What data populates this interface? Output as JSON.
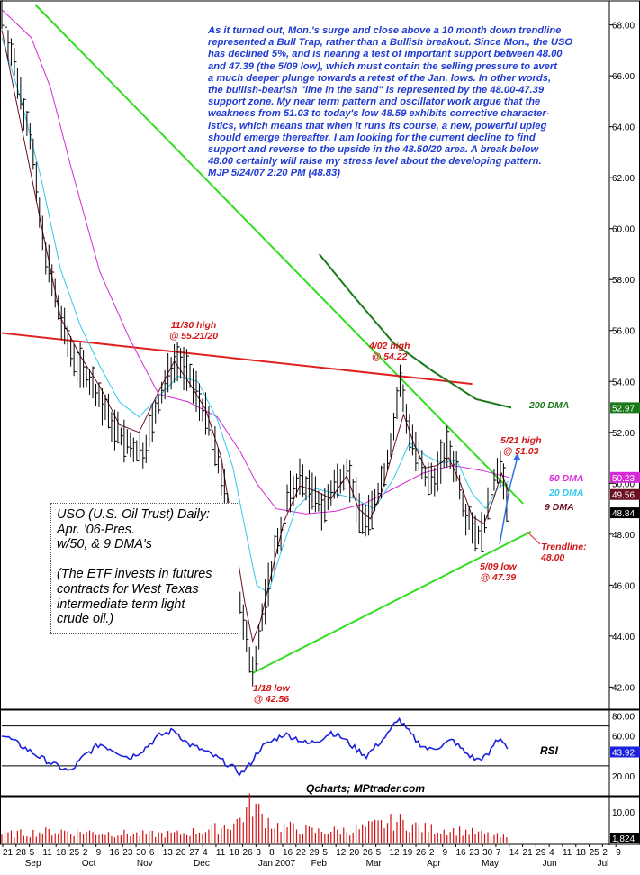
{
  "commentary": [
    "As it turned out, Mon.'s surge and close above a 10 month down trendline",
    "represented a Bull Trap, rather than a Bullish breakout. Since Mon., the USO",
    "has declined 5%, and is nearing a test of important support between 48.00",
    "and 47.39 (the 5/09 low), which must contain the selling pressure to avert",
    "a much deeper plunge towards a retest of the Jan. lows. In other words,",
    "the bullish-bearish \"line in the sand\" is represented by the 48.00-47.39",
    "support zone. My near term pattern and oscillator work argue that the",
    "weakness from 51.03 to today's low 48.59 exhibits corrective character-",
    "istics, which means that when it runs its course, a new, powerful upleg",
    "should emerge thereafter. I am looking for the current decline to find",
    "support and reverse to the upside in the 48.50/20 area. A break below",
    "48.00 certainly will raise my stress level about the developing pattern.",
    "MJP 5/24/07 2:20 PM (48.83)"
  ],
  "title_box": [
    "USO (U.S. Oil Trust) Daily:",
    "Apr. '06-Pres.",
    "w/50, & 9 DMA's",
    "",
    "(The ETF invests in futures",
    "contracts for West Texas",
    "intermediate term light",
    "crude oil.)"
  ],
  "annotations": {
    "nov30": [
      "11/30 high",
      "@ 55.21/20"
    ],
    "apr02": [
      "4/02 high",
      "@ 54.22"
    ],
    "may21": [
      "5/21 high",
      "@ 51.03"
    ],
    "jan18": [
      "1/18 low",
      "@ 42.56"
    ],
    "may09": [
      "5/09 low",
      "@ 47.39"
    ],
    "trendline": [
      "Trendline:",
      "48.00"
    ]
  },
  "dma_labels": {
    "dma200": "200 DMA",
    "dma50": "50 DMA",
    "dma20": "20 DMA",
    "dma9": "9 DMA"
  },
  "rsi_label": "RSI",
  "credit": "Qcharts; MPtrader.com",
  "colors": {
    "price_bars": "#000000",
    "dma200": "#1a7a1a",
    "dma50": "#d62ad6",
    "dma20": "#2fc8ee",
    "dma9": "#6b1020",
    "trendline_green": "#33dd22",
    "resistance_red": "#e02020",
    "rsi": "#1a22dd",
    "volume": "#d01010",
    "text_blue": "#1f3bd1",
    "text_red": "#d01818",
    "text_green": "#1a7a1a"
  },
  "chart_data": {
    "type": "ohlc_bar",
    "price_axis": {
      "ylim": [
        41.2,
        68.8
      ],
      "ticks": [
        "68.00",
        "66.00",
        "64.00",
        "62.00",
        "60.00",
        "58.00",
        "56.00",
        "54.00",
        "52.00",
        "50.00",
        "48.00",
        "46.00",
        "44.00",
        "42.00"
      ],
      "tick_values": [
        68,
        66,
        64,
        62,
        60,
        58,
        56,
        54,
        52,
        50,
        48,
        46,
        44,
        42
      ],
      "last_price_tags": [
        {
          "label": "52.97",
          "value": 52.97,
          "color": "#1a7a1a"
        },
        {
          "label": "50.23",
          "value": 50.23,
          "color": "#d62ad6"
        },
        {
          "label": "49.56",
          "value": 49.56,
          "color": "#6b1020"
        },
        {
          "label": "48.84",
          "value": 48.84,
          "color": "#000000"
        }
      ]
    },
    "rsi_axis": {
      "ylim": [
        0,
        86
      ],
      "ticks": [
        "80.00",
        "60.00",
        "20.00"
      ],
      "tick_values": [
        80,
        60,
        20
      ],
      "last": "43.92",
      "last_value": 43.92,
      "reference_lines": [
        70,
        30
      ]
    },
    "volume_axis": {
      "ticks": [
        "10,00"
      ],
      "tick_values": [
        10
      ],
      "last": "1,824",
      "last_value": 1.824,
      "ymax": 14
    },
    "x_axis": {
      "day_ticks": [
        "21",
        "28",
        "5",
        "11",
        "18",
        "25",
        "2",
        "9",
        "16",
        "23",
        "30",
        "6",
        "13",
        "20",
        "27",
        "4",
        "11",
        "18",
        "26",
        "3",
        "8",
        "16",
        "22",
        "29",
        "5",
        "12",
        "20",
        "26",
        "5",
        "12",
        "19",
        "26",
        "2",
        "9",
        "16",
        "23",
        "30",
        "7",
        "14",
        "21",
        "29",
        "4",
        "11",
        "18",
        "25",
        "2",
        "9"
      ],
      "month_labels": [
        {
          "label": "Sep",
          "day": 0
        },
        {
          "label": "Oct",
          "day": 29
        },
        {
          "label": "Nov",
          "day": 57
        },
        {
          "label": "Dec",
          "day": 86
        },
        {
          "label": "Jan 2007",
          "day": 119
        },
        {
          "label": "Feb",
          "day": 146
        },
        {
          "label": "Mar",
          "day": 174
        },
        {
          "label": "Apr",
          "day": 205
        },
        {
          "label": "May",
          "day": 233
        },
        {
          "label": "Jun",
          "day": 264
        },
        {
          "label": "Jul",
          "day": 292
        }
      ],
      "xlim_days": [
        -10,
        300
      ]
    },
    "price_path": [
      [
        -10,
        68.5
      ],
      [
        5,
        63.5
      ],
      [
        10,
        60
      ],
      [
        18,
        57
      ],
      [
        25,
        55.2
      ],
      [
        33,
        54.3
      ],
      [
        40,
        53.3
      ],
      [
        48,
        52.1
      ],
      [
        55,
        51.4
      ],
      [
        62,
        51.2
      ],
      [
        70,
        53.1
      ],
      [
        76,
        54.5
      ],
      [
        79,
        55.0
      ],
      [
        84,
        54.4
      ],
      [
        90,
        53.5
      ],
      [
        96,
        52.2
      ],
      [
        103,
        50
      ],
      [
        108,
        47.2
      ],
      [
        112,
        45
      ],
      [
        116,
        43.2
      ],
      [
        118,
        42.8
      ],
      [
        120,
        43.4
      ],
      [
        124,
        45.2
      ],
      [
        130,
        47.5
      ],
      [
        136,
        49.4
      ],
      [
        142,
        50.2
      ],
      [
        148,
        49.6
      ],
      [
        154,
        49.0
      ],
      [
        160,
        49.9
      ],
      [
        166,
        50.6
      ],
      [
        172,
        49.0
      ],
      [
        176,
        48.4
      ],
      [
        180,
        49.2
      ],
      [
        186,
        50.6
      ],
      [
        190,
        52.2
      ],
      [
        193,
        54.0
      ],
      [
        197,
        52.4
      ],
      [
        202,
        51.0
      ],
      [
        207,
        50.0
      ],
      [
        212,
        50.4
      ],
      [
        217,
        51.4
      ],
      [
        222,
        50.6
      ],
      [
        226,
        49.0
      ],
      [
        230,
        48.4
      ],
      [
        234,
        47.8
      ],
      [
        238,
        48.9
      ],
      [
        242,
        50.5
      ],
      [
        244,
        50.8
      ],
      [
        247,
        49.4
      ],
      [
        249,
        48.9
      ]
    ],
    "bar_spread": 0.9,
    "dma200": [
      [
        152,
        59
      ],
      [
        170,
        57.3
      ],
      [
        190,
        55.5
      ],
      [
        210,
        54.4
      ],
      [
        232,
        53.3
      ],
      [
        250,
        52.97
      ]
    ],
    "dma50": [
      [
        -10,
        68.6
      ],
      [
        5,
        67.5
      ],
      [
        15,
        65.5
      ],
      [
        25,
        62.5
      ],
      [
        40,
        58.3
      ],
      [
        55,
        55.7
      ],
      [
        70,
        53.5
      ],
      [
        85,
        53.2
      ],
      [
        100,
        52.6
      ],
      [
        112,
        51.2
      ],
      [
        120,
        50.0
      ],
      [
        130,
        49.0
      ],
      [
        145,
        48.8
      ],
      [
        160,
        48.9
      ],
      [
        175,
        49.2
      ],
      [
        190,
        49.8
      ],
      [
        205,
        50.4
      ],
      [
        220,
        50.7
      ],
      [
        235,
        50.5
      ],
      [
        249,
        50.23
      ]
    ],
    "dma20": [
      [
        -10,
        67.5
      ],
      [
        0,
        65
      ],
      [
        10,
        62
      ],
      [
        20,
        58.4
      ],
      [
        30,
        56.2
      ],
      [
        40,
        54.6
      ],
      [
        50,
        53.2
      ],
      [
        60,
        52.6
      ],
      [
        70,
        53.4
      ],
      [
        80,
        54.2
      ],
      [
        90,
        54
      ],
      [
        100,
        52.5
      ],
      [
        108,
        50.6
      ],
      [
        115,
        47.9
      ],
      [
        120,
        46
      ],
      [
        126,
        45.7
      ],
      [
        132,
        47.2
      ],
      [
        140,
        49
      ],
      [
        150,
        49.8
      ],
      [
        160,
        49.6
      ],
      [
        170,
        49.4
      ],
      [
        180,
        49.0
      ],
      [
        190,
        50.2
      ],
      [
        198,
        51.6
      ],
      [
        206,
        51.1
      ],
      [
        214,
        50.8
      ],
      [
        222,
        50.9
      ],
      [
        230,
        49.6
      ],
      [
        237,
        49.0
      ],
      [
        243,
        49.8
      ],
      [
        249,
        50.1
      ]
    ],
    "dma9": [
      [
        -10,
        67.8
      ],
      [
        0,
        64
      ],
      [
        10,
        60.2
      ],
      [
        20,
        56.5
      ],
      [
        30,
        55.0
      ],
      [
        40,
        53.8
      ],
      [
        50,
        52.3
      ],
      [
        60,
        52.0
      ],
      [
        70,
        53.6
      ],
      [
        78,
        54.8
      ],
      [
        86,
        53.9
      ],
      [
        94,
        52.9
      ],
      [
        102,
        51.0
      ],
      [
        108,
        48.2
      ],
      [
        114,
        45.3
      ],
      [
        118,
        43.8
      ],
      [
        122,
        44.6
      ],
      [
        128,
        46.6
      ],
      [
        134,
        48.5
      ],
      [
        142,
        49.9
      ],
      [
        150,
        49.7
      ],
      [
        158,
        49.4
      ],
      [
        166,
        50.3
      ],
      [
        172,
        49.0
      ],
      [
        178,
        48.6
      ],
      [
        184,
        49.7
      ],
      [
        190,
        51.4
      ],
      [
        195,
        52.7
      ],
      [
        200,
        51.6
      ],
      [
        206,
        50.6
      ],
      [
        212,
        50.7
      ],
      [
        218,
        51.0
      ],
      [
        224,
        50.0
      ],
      [
        230,
        48.7
      ],
      [
        236,
        48.4
      ],
      [
        241,
        49.4
      ],
      [
        245,
        50.4
      ],
      [
        249,
        49.56
      ]
    ],
    "trendline_down": [
      [
        7,
        68.8
      ],
      [
        256,
        49.2
      ]
    ],
    "trendline_support": [
      [
        118,
        42.55
      ],
      [
        260,
        48.1
      ]
    ],
    "resistance_line": [
      [
        -10,
        55.9
      ],
      [
        230,
        53.9
      ]
    ],
    "projection_arrow": [
      [
        244,
        47.6
      ],
      [
        249,
        49.8
      ],
      [
        253,
        51.0
      ]
    ],
    "rsi": [
      [
        -10,
        62
      ],
      [
        0,
        50
      ],
      [
        10,
        38
      ],
      [
        18,
        30
      ],
      [
        25,
        24
      ],
      [
        32,
        40
      ],
      [
        40,
        52
      ],
      [
        48,
        45
      ],
      [
        55,
        38
      ],
      [
        62,
        46
      ],
      [
        70,
        60
      ],
      [
        78,
        66
      ],
      [
        85,
        52
      ],
      [
        92,
        46
      ],
      [
        100,
        38
      ],
      [
        108,
        28
      ],
      [
        112,
        22
      ],
      [
        116,
        30
      ],
      [
        122,
        48
      ],
      [
        128,
        55
      ],
      [
        134,
        62
      ],
      [
        140,
        58
      ],
      [
        146,
        52
      ],
      [
        152,
        56
      ],
      [
        158,
        64
      ],
      [
        164,
        58
      ],
      [
        170,
        48
      ],
      [
        176,
        40
      ],
      [
        182,
        52
      ],
      [
        188,
        64
      ],
      [
        192,
        78
      ],
      [
        196,
        68
      ],
      [
        202,
        54
      ],
      [
        208,
        46
      ],
      [
        214,
        50
      ],
      [
        220,
        56
      ],
      [
        226,
        44
      ],
      [
        232,
        36
      ],
      [
        238,
        40
      ],
      [
        242,
        55
      ],
      [
        245,
        58
      ],
      [
        249,
        43.92
      ]
    ],
    "volume": [
      [
        -10,
        3
      ],
      [
        20,
        4.2
      ],
      [
        40,
        3.6
      ],
      [
        60,
        3.1
      ],
      [
        80,
        3.2
      ],
      [
        100,
        5
      ],
      [
        110,
        7.2
      ],
      [
        116,
        11.8
      ],
      [
        118,
        13.6
      ],
      [
        122,
        9.5
      ],
      [
        130,
        6
      ],
      [
        150,
        4
      ],
      [
        170,
        4.5
      ],
      [
        192,
        7.5
      ],
      [
        205,
        5
      ],
      [
        225,
        4.2
      ],
      [
        249,
        1.824
      ]
    ]
  }
}
